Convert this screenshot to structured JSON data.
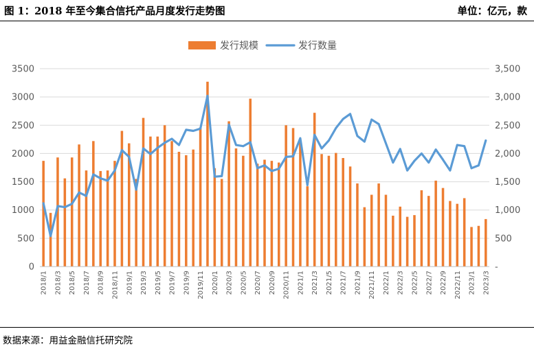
{
  "header": {
    "title": "图 1：2018 年至今集合信托产品月度发行走势图",
    "unit": "单位：亿元，款"
  },
  "footer": {
    "source": "数据来源：用益金融信托研究院"
  },
  "colors": {
    "bar": "#ED7D31",
    "line": "#5B9BD5",
    "gridline": "#D9D9D9",
    "axis": "#BFBFBF"
  },
  "chart_data": {
    "type": "bar",
    "title": "",
    "xlabel": "",
    "ylabel": "",
    "grid": true,
    "legend_position": "top-center",
    "ylim_left": [
      0,
      3500
    ],
    "ylim_right": [
      0,
      3500
    ],
    "left_ticks": [
      "0",
      "500",
      "1000",
      "1500",
      "2000",
      "2500",
      "3000",
      "3500"
    ],
    "right_ticks": [
      "-",
      "500",
      "1,000",
      "1,500",
      "2,000",
      "2,500",
      "3,000",
      "3,500"
    ],
    "x_tick_labels": [
      "2018/1",
      "2018/3",
      "2018/5",
      "2018/7",
      "2018/9",
      "2018/11",
      "2019/1",
      "2019/3",
      "2019/5",
      "2019/7",
      "2019/9",
      "2019/11",
      "2020/1",
      "2020/3",
      "2020/5",
      "2020/7",
      "2020/9",
      "2020/11",
      "2021/1",
      "2021/3",
      "2021/5",
      "2021/7",
      "2021/9",
      "2021/11",
      "2022/1",
      "2022/3",
      "2022/5",
      "2022/7",
      "2022/9",
      "2022/11",
      "2023/1",
      "2023/3"
    ],
    "categories": [
      "2018/1",
      "2018/2",
      "2018/3",
      "2018/4",
      "2018/5",
      "2018/6",
      "2018/7",
      "2018/8",
      "2018/9",
      "2018/10",
      "2018/11",
      "2018/12",
      "2019/1",
      "2019/2",
      "2019/3",
      "2019/4",
      "2019/5",
      "2019/6",
      "2019/7",
      "2019/8",
      "2019/9",
      "2019/10",
      "2019/11",
      "2019/12",
      "2020/1",
      "2020/2",
      "2020/3",
      "2020/4",
      "2020/5",
      "2020/6",
      "2020/7",
      "2020/8",
      "2020/9",
      "2020/10",
      "2020/11",
      "2020/12",
      "2021/1",
      "2021/2",
      "2021/3",
      "2021/4",
      "2021/5",
      "2021/6",
      "2021/7",
      "2021/8",
      "2021/9",
      "2021/10",
      "2021/11",
      "2021/12",
      "2022/1",
      "2022/2",
      "2022/3",
      "2022/4",
      "2022/5",
      "2022/6",
      "2022/7",
      "2022/8",
      "2022/9",
      "2022/10",
      "2022/11",
      "2022/12",
      "2023/1",
      "2023/2",
      "2023/3"
    ],
    "series": [
      {
        "name": "发行规模",
        "type": "bar",
        "axis": "left",
        "values": [
          1870,
          950,
          1930,
          1560,
          1930,
          2160,
          1700,
          2220,
          1690,
          1700,
          1870,
          2400,
          2180,
          1550,
          2630,
          2300,
          2300,
          2500,
          2220,
          2030,
          1970,
          2070,
          2460,
          3270,
          1740,
          1550,
          2570,
          2090,
          1960,
          2970,
          1820,
          1890,
          1870,
          1840,
          2500,
          2450,
          2220,
          1420,
          2720,
          1990,
          1960,
          2010,
          1920,
          1770,
          1470,
          1050,
          1270,
          1470,
          1270,
          900,
          1060,
          880,
          910,
          1350,
          1250,
          1520,
          1390,
          1160,
          1110,
          1210,
          700,
          720,
          840
        ]
      },
      {
        "name": "发行数量",
        "type": "line",
        "axis": "right",
        "values": [
          1120,
          540,
          1070,
          1050,
          1110,
          1310,
          1250,
          1630,
          1560,
          1520,
          1700,
          2060,
          1940,
          1360,
          2090,
          1990,
          2100,
          2190,
          2260,
          2150,
          2420,
          2400,
          2440,
          3020,
          1590,
          1600,
          2510,
          2150,
          2130,
          2200,
          1740,
          1790,
          1690,
          1730,
          1940,
          1950,
          2270,
          1440,
          2330,
          2090,
          2230,
          2450,
          2610,
          2700,
          2310,
          2210,
          2600,
          2520,
          2180,
          1840,
          2080,
          1700,
          1870,
          2000,
          1840,
          2070,
          1890,
          1700,
          2150,
          2130,
          1740,
          1790,
          2230
        ]
      }
    ]
  }
}
